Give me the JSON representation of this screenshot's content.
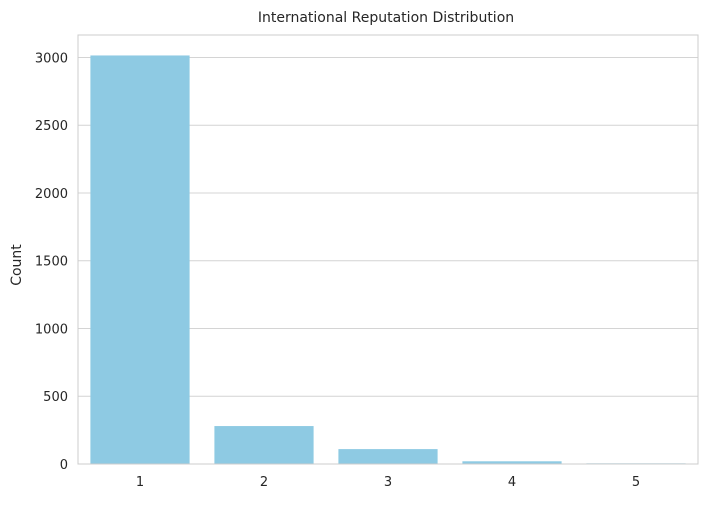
{
  "chart_data": {
    "type": "bar",
    "title": "International Reputation Distribution",
    "xlabel": "",
    "ylabel": "Count",
    "categories": [
      "1",
      "2",
      "3",
      "4",
      "5"
    ],
    "values": [
      3015,
      280,
      110,
      20,
      5
    ],
    "ylim": [
      0,
      3166
    ],
    "yticks": [
      0,
      500,
      1000,
      1500,
      2000,
      2500,
      3000
    ],
    "grid": "horizontal",
    "bar_color": "#8ecae3",
    "grid_color": "#d4d4d4",
    "frame_color": "#cccccc"
  }
}
